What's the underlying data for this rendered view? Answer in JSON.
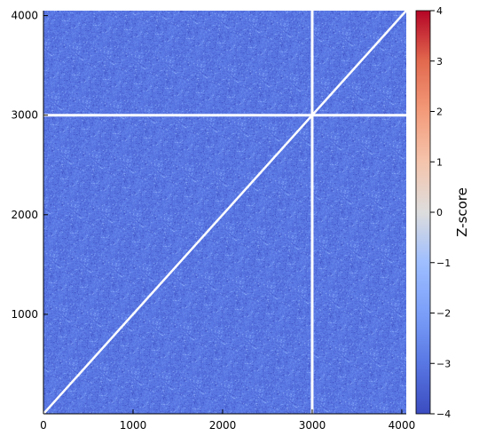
{
  "chart_data": {
    "type": "heatmap",
    "title": "",
    "xlabel": "",
    "ylabel": "",
    "xlim": [
      0,
      4050
    ],
    "ylim": [
      0,
      4050
    ],
    "x_ticks": [
      0,
      1000,
      2000,
      3000,
      4000
    ],
    "y_ticks": [
      1000,
      2000,
      3000,
      4000
    ],
    "x_tick_labels": [
      "0",
      "1000",
      "2000",
      "3000",
      "4000"
    ],
    "y_tick_labels": [
      "1000",
      "2000",
      "3000",
      "4000"
    ],
    "background_zscore_range": [
      -3.8,
      -2.2
    ],
    "gaps": [
      {
        "orientation": "vertical",
        "at": 3000
      },
      {
        "orientation": "horizontal",
        "at": 3000
      }
    ],
    "diagonal": {
      "from": [
        0,
        0
      ],
      "to": [
        4050,
        4050
      ]
    },
    "grid": false,
    "colorbar": {
      "label": "Z-score",
      "min": -4,
      "max": 4,
      "ticks": [
        -4,
        -3,
        -2,
        -1,
        0,
        1,
        2,
        3,
        4
      ],
      "tick_labels": [
        "−4",
        "−3",
        "−2",
        "−1",
        "0",
        "1",
        "2",
        "3",
        "4"
      ],
      "colormap": "coolwarm",
      "colors": {
        "low": "#3b4cc0",
        "mid": "#dddddd",
        "high": "#b40426"
      }
    }
  }
}
